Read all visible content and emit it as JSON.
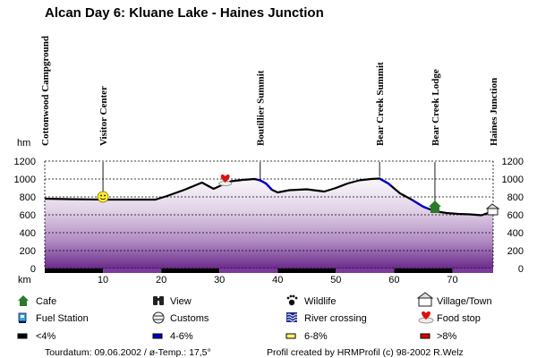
{
  "chart_data": {
    "type": "area",
    "title": "Alcan Day 6: Kluane Lake - Haines Junction",
    "xlabel": "km",
    "ylabel": "hm",
    "xlim": [
      0,
      77
    ],
    "ylim": [
      0,
      1200
    ],
    "x_ticks": [
      "10",
      "20",
      "30",
      "40",
      "50",
      "60",
      "70"
    ],
    "y_ticks": [
      "0",
      "200",
      "400",
      "600",
      "800",
      "1000",
      "1200"
    ],
    "grid": true,
    "profile": {
      "x": [
        0,
        4,
        8,
        10,
        14,
        19,
        21,
        24,
        27,
        29,
        31,
        32,
        34,
        36,
        37,
        38,
        39,
        40,
        42,
        45,
        48,
        50,
        52,
        54,
        56,
        57.5,
        59,
        61,
        63,
        65,
        67,
        69,
        71,
        73,
        75,
        77
      ],
      "y": [
        780,
        775,
        772,
        770,
        770,
        770,
        810,
        880,
        960,
        890,
        950,
        975,
        990,
        1000,
        985,
        950,
        880,
        850,
        875,
        885,
        860,
        900,
        950,
        985,
        1000,
        1005,
        950,
        840,
        770,
        690,
        640,
        620,
        610,
        605,
        595,
        640
      ]
    },
    "gradient_segments": [
      {
        "from_km": 36.5,
        "to_km": 39,
        "class": "4-6%"
      },
      {
        "from_km": 57.5,
        "to_km": 59.5,
        "class": "4-6%"
      },
      {
        "from_km": 63,
        "to_km": 66,
        "class": "4-6%"
      }
    ],
    "waypoints": [
      {
        "label": "Cottonwood Campground",
        "km": 0
      },
      {
        "label": "Visitor Center",
        "km": 10
      },
      {
        "label": "Boutillier Summit",
        "km": 37
      },
      {
        "label": "Bear Creek Summit",
        "km": 57.5
      },
      {
        "label": "Bear Creek Lodge",
        "km": 67
      },
      {
        "label": "Haines Junction",
        "km": 77
      }
    ],
    "markers": [
      {
        "type": "Visitor Center",
        "icon": "smiley-icon",
        "km": 10,
        "elevation": 800
      },
      {
        "type": "Food stop",
        "icon": "food-stop-icon",
        "km": 31,
        "elevation": 980
      },
      {
        "type": "Cafe",
        "icon": "cafe-icon",
        "km": 67,
        "elevation": 680
      },
      {
        "type": "Village/Town",
        "icon": "village-icon",
        "km": 77,
        "elevation": 640
      }
    ]
  },
  "legend": {
    "row1": [
      {
        "label": "Cafe",
        "icon": "cafe-icon"
      },
      {
        "label": "View",
        "icon": "binoculars-icon"
      },
      {
        "label": "Wildlife",
        "icon": "paw-icon"
      },
      {
        "label": "Village/Town",
        "icon": "village-icon"
      }
    ],
    "row2": [
      {
        "label": "Fuel Station",
        "icon": "fuel-station-icon"
      },
      {
        "label": "Customs",
        "icon": "customs-icon"
      },
      {
        "label": "River crossing",
        "icon": "river-crossing-icon"
      },
      {
        "label": "Food stop",
        "icon": "food-stop-icon"
      }
    ],
    "row3": [
      {
        "label": "<4%",
        "color": "#000000"
      },
      {
        "label": "4-6%",
        "color": "#0000cc"
      },
      {
        "label": "6-8%",
        "color": "#ffff66"
      },
      {
        "label": ">8%",
        "color": "#dd0000"
      }
    ]
  },
  "footer": {
    "date": "Tourdatum: 09.06.2002  /  ø-Temp.: 17,5°",
    "credit": "Profil created by HRMProfil (c) 98-2002 R.Welz"
  },
  "colors": {
    "fill_top": "#f3eef6",
    "fill_bottom": "#6a2a8a",
    "profile_line": "#000000",
    "slope_4_6": "#0000cc"
  }
}
